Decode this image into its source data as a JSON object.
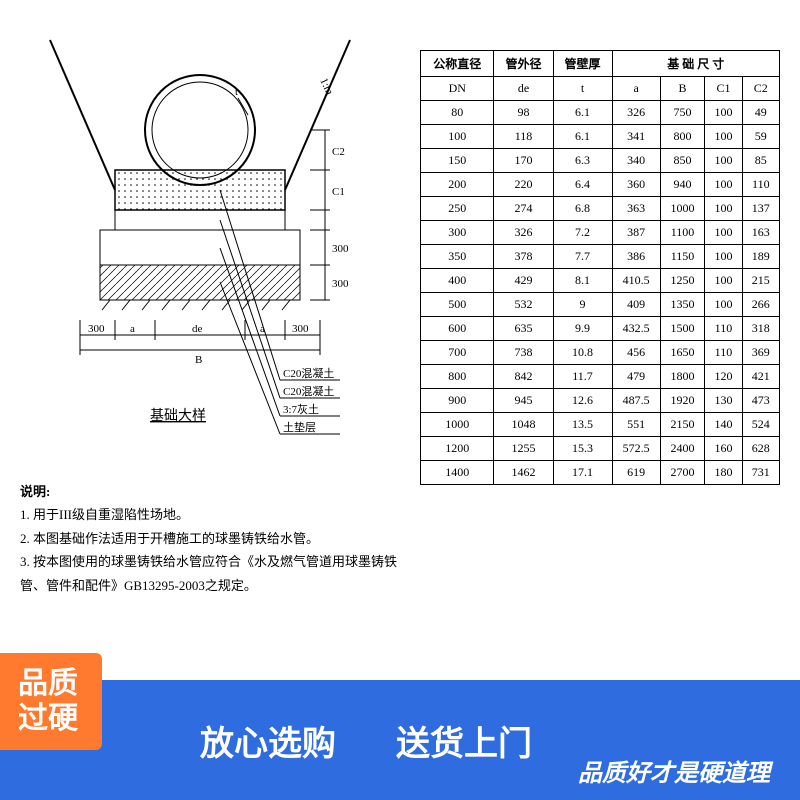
{
  "diagram": {
    "caption": "基础大样",
    "labels": {
      "slope": "1:m",
      "a": "a",
      "de": "de",
      "B": "B",
      "t": "t",
      "C1": "C1",
      "C2": "C2",
      "d300_left": "300",
      "d300_right": "300",
      "v300a": "300",
      "v300b": "300"
    },
    "callouts": [
      "C20混凝土",
      "C20混凝土",
      "3:7灰土",
      "土垫层"
    ]
  },
  "notes": {
    "title": "说明:",
    "items": [
      "1. 用于III级自重湿陷性场地。",
      "2. 本图基础作法适用于开槽施工的球墨铸铁给水管。",
      "3. 按本图使用的球墨铸铁给水管应符合《水及燃气管道用球墨铸铁管、管件和配件》GB13295-2003之规定。"
    ]
  },
  "table": {
    "header_group1": "公称直径",
    "header_group2": "管外径",
    "header_group3": "管壁厚",
    "header_group4": "基 础 尺 寸",
    "cols": [
      "DN",
      "de",
      "t",
      "a",
      "B",
      "C1",
      "C2"
    ],
    "rows": [
      [
        "80",
        "98",
        "6.1",
        "326",
        "750",
        "100",
        "49"
      ],
      [
        "100",
        "118",
        "6.1",
        "341",
        "800",
        "100",
        "59"
      ],
      [
        "150",
        "170",
        "6.3",
        "340",
        "850",
        "100",
        "85"
      ],
      [
        "200",
        "220",
        "6.4",
        "360",
        "940",
        "100",
        "110"
      ],
      [
        "250",
        "274",
        "6.8",
        "363",
        "1000",
        "100",
        "137"
      ],
      [
        "300",
        "326",
        "7.2",
        "387",
        "1100",
        "100",
        "163"
      ],
      [
        "350",
        "378",
        "7.7",
        "386",
        "1150",
        "100",
        "189"
      ],
      [
        "400",
        "429",
        "8.1",
        "410.5",
        "1250",
        "100",
        "215"
      ],
      [
        "500",
        "532",
        "9",
        "409",
        "1350",
        "100",
        "266"
      ],
      [
        "600",
        "635",
        "9.9",
        "432.5",
        "1500",
        "110",
        "318"
      ],
      [
        "700",
        "738",
        "10.8",
        "456",
        "1650",
        "110",
        "369"
      ],
      [
        "800",
        "842",
        "11.7",
        "479",
        "1800",
        "120",
        "421"
      ],
      [
        "900",
        "945",
        "12.6",
        "487.5",
        "1920",
        "130",
        "473"
      ],
      [
        "1000",
        "1048",
        "13.5",
        "551",
        "2150",
        "140",
        "524"
      ],
      [
        "1200",
        "1255",
        "15.3",
        "572.5",
        "2400",
        "160",
        "628"
      ],
      [
        "1400",
        "1462",
        "17.1",
        "619",
        "2700",
        "180",
        "731"
      ]
    ]
  },
  "banner": {
    "badge_line1": "品质",
    "badge_line2": "过硬",
    "mid1": "放心选购",
    "mid2": "送货上门",
    "sub": "品质好才是硬道理"
  },
  "colors": {
    "banner_bg": "#2f6cdf",
    "badge_bg": "#ff7a2e"
  }
}
